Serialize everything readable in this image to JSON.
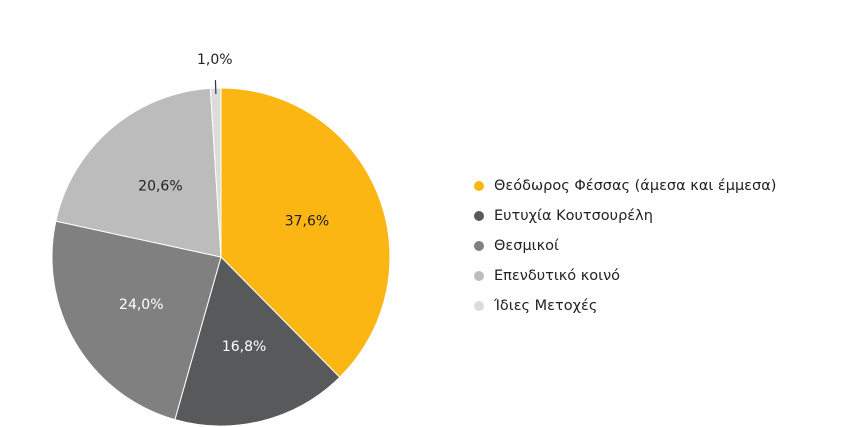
{
  "chart_data": {
    "type": "pie",
    "title": "",
    "start_angle_deg": 0,
    "direction": "clockwise",
    "slices": [
      {
        "label": "Θεόδωρος Φέσσας (άμεσα και έμμεσα)",
        "value": 37.6,
        "value_label": "37,6%",
        "color": "#FBB614"
      },
      {
        "label": "Ευτυχία Κουτσουρέλη",
        "value": 16.8,
        "value_label": "16,8%",
        "color": "#58595B"
      },
      {
        "label": "Θεσμικοί",
        "value": 24.0,
        "value_label": "24,0%",
        "color": "#808080"
      },
      {
        "label": "Επενδυτικό κοινό",
        "value": 20.6,
        "value_label": "20,6%",
        "color": "#BCBCBC"
      },
      {
        "label": "Ίδιες Μετοχές",
        "value": 1.0,
        "value_label": "1,0%",
        "color": "#DCDCDC"
      }
    ],
    "legend_position": "right"
  }
}
